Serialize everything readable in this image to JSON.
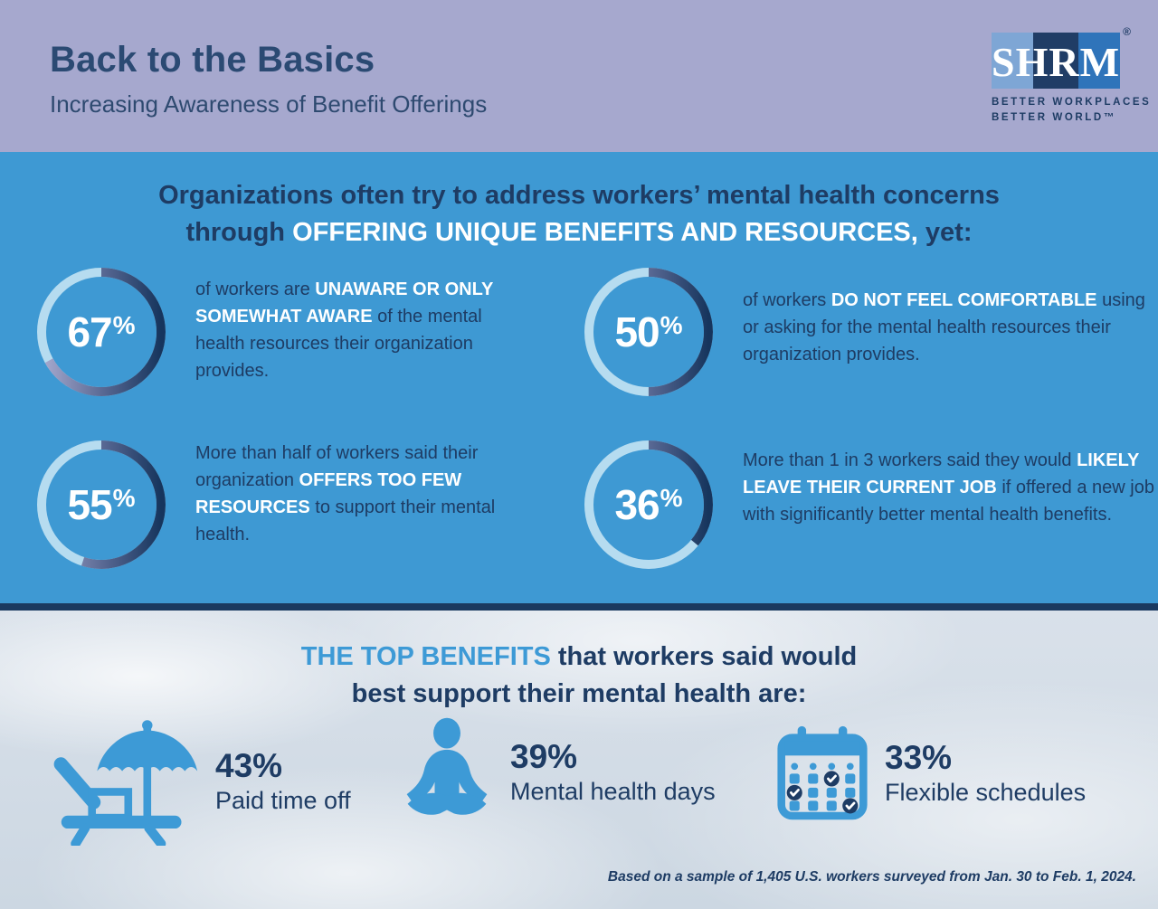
{
  "header": {
    "title": "Back to the Basics",
    "subtitle": "Increasing Awareness of Benefit Offerings",
    "logo": {
      "text": "SHRM",
      "registered": "®",
      "tagline_line1": "BETTER WORKPLACES",
      "tagline_line2": "BETTER WORLD™"
    }
  },
  "colors": {
    "header_bg": "#a6a8ce",
    "blue_section_bg": "#3e99d3",
    "navy_text": "#1e3c64",
    "white": "#ffffff",
    "icon_blue": "#3d9ad6",
    "ring_track": "#b6dcf0",
    "ring_gradient_start": "#a9abd0",
    "ring_gradient_end": "#16355d",
    "divider": "#1a3a60",
    "sky_bg": "#d9e1ea"
  },
  "stats": {
    "percent": "%",
    "heading_line1": [
      {
        "text": "Organizations often try to address workers’ mental health concerns"
      }
    ],
    "heading_line2": [
      {
        "text": "through "
      },
      {
        "text": "OFFERING UNIQUE BENEFITS AND RESOURCES,",
        "style": "strong"
      },
      {
        "text": " yet:"
      }
    ],
    "items": [
      {
        "value": "67",
        "pct": 67,
        "desc": [
          {
            "text": "of workers are "
          },
          {
            "text": "UNAWARE OR ONLY SOMEWHAT AWARE",
            "style": "strong"
          },
          {
            "text": " of the mental health resources their organization provides."
          }
        ]
      },
      {
        "value": "50",
        "pct": 50,
        "desc": [
          {
            "text": "of workers "
          },
          {
            "text": "DO NOT FEEL COMFORTABLE",
            "style": "strong"
          },
          {
            "text": " using or asking for the mental health resources their organization provides."
          }
        ]
      },
      {
        "value": "55",
        "pct": 55,
        "desc": [
          {
            "text": "More than half of workers said their organization "
          },
          {
            "text": "OFFERS TOO FEW RESOURCES",
            "style": "strong"
          },
          {
            "text": " to support their mental health."
          }
        ]
      },
      {
        "value": "36",
        "pct": 36,
        "desc": [
          {
            "text": "More than 1 in 3 workers said they would "
          },
          {
            "text": "LIKELY LEAVE THEIR CURRENT JOB",
            "style": "strong"
          },
          {
            "text": " if offered a new job with significantly better mental health benefits."
          }
        ]
      }
    ]
  },
  "benefits": {
    "heading_line1": [
      {
        "text": "THE TOP BENEFITS",
        "style": "accent"
      },
      {
        "text": " that workers said would"
      }
    ],
    "heading_line2": [
      {
        "text": "best support their mental health are:"
      }
    ],
    "items": [
      {
        "icon": "beach-umbrella-icon",
        "value": "43%",
        "label": "Paid time off"
      },
      {
        "icon": "meditation-icon",
        "value": "39%",
        "label": "Mental health days"
      },
      {
        "icon": "calendar-check-icon",
        "value": "33%",
        "label": "Flexible schedules"
      }
    ],
    "footnote": "Based on a sample of 1,405 U.S. workers surveyed from Jan. 30 to Feb. 1, 2024."
  },
  "chart_data": [
    {
      "type": "pie",
      "variant": "donut-progress-rings",
      "title": "Organizations often try to address workers’ mental health concerns through OFFERING UNIQUE BENEFITS AND RESOURCES, yet:",
      "categories": [
        "of workers are UNAWARE OR ONLY SOMEWHAT AWARE of the mental health resources their organization provides.",
        "of workers DO NOT FEEL COMFORTABLE using or asking for the mental health resources their organization provides.",
        "More than half of workers said their organization OFFERS TOO FEW RESOURCES to support their mental health.",
        "More than 1 in 3 workers said they would LIKELY LEAVE THEIR CURRENT JOB if offered a new job with significantly better mental health benefits."
      ],
      "values": [
        67,
        50,
        55,
        36
      ],
      "unit": "percent"
    },
    {
      "type": "bar",
      "title": "THE TOP BENEFITS that workers said would best support their mental health are:",
      "categories": [
        "Paid time off",
        "Mental health days",
        "Flexible schedules"
      ],
      "values": [
        43,
        39,
        33
      ],
      "unit": "percent",
      "footnote": "Based on a sample of 1,405 U.S. workers surveyed from Jan. 30 to Feb. 1, 2024."
    }
  ]
}
